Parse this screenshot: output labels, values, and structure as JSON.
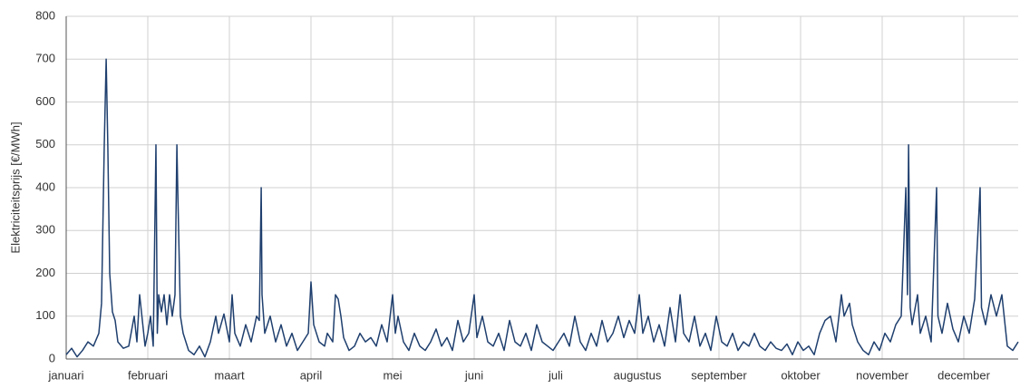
{
  "chart_data": {
    "type": "line",
    "ylabel": "Elektriciteitsprijs [€/MWh]",
    "color": "#1f3f6e",
    "grid": true,
    "xlim": [
      0,
      350
    ],
    "xticks": [
      {
        "value": 0,
        "label": "januari"
      },
      {
        "value": 30,
        "label": "februari"
      },
      {
        "value": 60,
        "label": "maart"
      },
      {
        "value": 90,
        "label": "april"
      },
      {
        "value": 120,
        "label": "mei"
      },
      {
        "value": 150,
        "label": "juni"
      },
      {
        "value": 180,
        "label": "juli"
      },
      {
        "value": 210,
        "label": "augustus"
      },
      {
        "value": 240,
        "label": "september"
      },
      {
        "value": 270,
        "label": "oktober"
      },
      {
        "value": 300,
        "label": "november"
      },
      {
        "value": 330,
        "label": "december"
      }
    ],
    "ylim": [
      0,
      800
    ],
    "yticks": [
      0,
      100,
      200,
      300,
      400,
      500,
      600,
      700,
      800
    ],
    "x": [
      0,
      2,
      4,
      6,
      8,
      10,
      12,
      13,
      14,
      14.7,
      15.3,
      16,
      17,
      18,
      19,
      21,
      23,
      25,
      26,
      27,
      28,
      29,
      30,
      31,
      32,
      33,
      33.5,
      34,
      35,
      36,
      37,
      38,
      39,
      40,
      40.7,
      41,
      42,
      43,
      45,
      47,
      49,
      51,
      53,
      55,
      56,
      58,
      60,
      61,
      62,
      64,
      66,
      68,
      70,
      71,
      71.7,
      72,
      73,
      75,
      77,
      79,
      81,
      83,
      85,
      87,
      89,
      90,
      91,
      93,
      95,
      96,
      98,
      99,
      100,
      101,
      102,
      104,
      106,
      108,
      110,
      112,
      114,
      116,
      118,
      120,
      121,
      122,
      124,
      126,
      128,
      130,
      132,
      134,
      136,
      138,
      140,
      142,
      144,
      146,
      148,
      150,
      151,
      153,
      155,
      157,
      159,
      161,
      163,
      165,
      167,
      169,
      171,
      173,
      175,
      177,
      179,
      181,
      183,
      185,
      187,
      189,
      191,
      193,
      195,
      197,
      199,
      201,
      203,
      205,
      207,
      209,
      210.7,
      212,
      214,
      216,
      218,
      220,
      222,
      224,
      225.7,
      227,
      229,
      231,
      233,
      235,
      237,
      239,
      241,
      243,
      245,
      247,
      249,
      251,
      253,
      255,
      257,
      259,
      261,
      263,
      265,
      267,
      269,
      271,
      273,
      275,
      277,
      279,
      281,
      283,
      285,
      286,
      288,
      289,
      291,
      293,
      295,
      297,
      299,
      301,
      303,
      305,
      307,
      308.7,
      309.3,
      309.7,
      310.3,
      311,
      313,
      314,
      316,
      318,
      320,
      320.5,
      322,
      324,
      326,
      328,
      330,
      332,
      334,
      336,
      336.5,
      338,
      340,
      342,
      344,
      346,
      348,
      350
    ],
    "values": [
      10,
      25,
      5,
      20,
      40,
      30,
      60,
      130,
      500,
      700,
      500,
      200,
      110,
      90,
      40,
      25,
      30,
      100,
      40,
      150,
      90,
      30,
      60,
      100,
      30,
      500,
      60,
      150,
      110,
      150,
      80,
      150,
      100,
      150,
      500,
      400,
      100,
      60,
      20,
      10,
      30,
      5,
      40,
      100,
      60,
      105,
      40,
      150,
      60,
      30,
      80,
      40,
      100,
      90,
      400,
      150,
      60,
      100,
      40,
      80,
      30,
      60,
      20,
      40,
      60,
      180,
      80,
      40,
      30,
      60,
      40,
      150,
      140,
      100,
      50,
      20,
      30,
      60,
      40,
      50,
      30,
      80,
      40,
      150,
      60,
      100,
      40,
      20,
      60,
      30,
      20,
      40,
      70,
      30,
      50,
      20,
      90,
      40,
      60,
      150,
      50,
      100,
      40,
      30,
      60,
      20,
      90,
      40,
      30,
      60,
      20,
      80,
      40,
      30,
      20,
      40,
      60,
      30,
      100,
      40,
      20,
      60,
      30,
      90,
      40,
      60,
      100,
      50,
      90,
      60,
      150,
      60,
      100,
      40,
      80,
      30,
      120,
      40,
      150,
      60,
      40,
      100,
      30,
      60,
      20,
      100,
      40,
      30,
      60,
      20,
      40,
      30,
      60,
      30,
      20,
      40,
      25,
      20,
      35,
      10,
      40,
      20,
      30,
      10,
      60,
      90,
      100,
      40,
      150,
      100,
      130,
      80,
      40,
      20,
      10,
      40,
      20,
      60,
      40,
      80,
      100,
      400,
      150,
      500,
      120,
      80,
      150,
      60,
      100,
      40,
      400,
      100,
      60,
      130,
      70,
      40,
      100,
      60,
      140,
      400,
      120,
      80,
      150,
      100,
      150,
      30,
      20,
      40
    ]
  }
}
